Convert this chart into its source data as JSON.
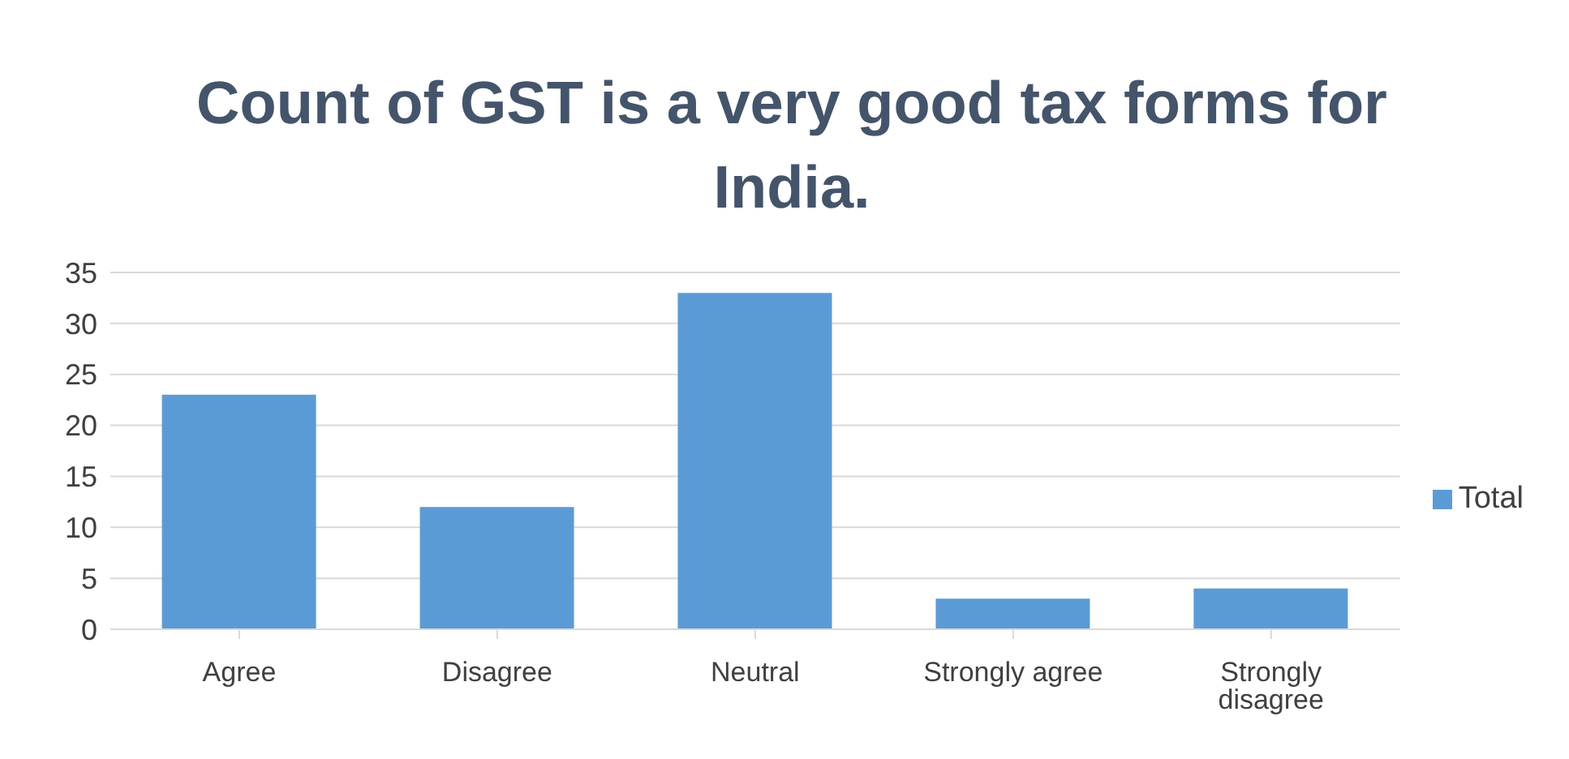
{
  "chart_data": {
    "type": "bar",
    "title": "Count of GST is a very good tax forms for India.",
    "categories": [
      "Agree",
      "Disagree",
      "Neutral",
      "Strongly agree",
      "Strongly disagree"
    ],
    "series": [
      {
        "name": "Total",
        "color": "#5b9bd5",
        "values": [
          23,
          12,
          33,
          3,
          4
        ]
      }
    ],
    "ylim": [
      0,
      35
    ],
    "yticks": [
      0,
      5,
      10,
      15,
      20,
      25,
      30,
      35
    ],
    "grid": "y",
    "legend": "right"
  }
}
